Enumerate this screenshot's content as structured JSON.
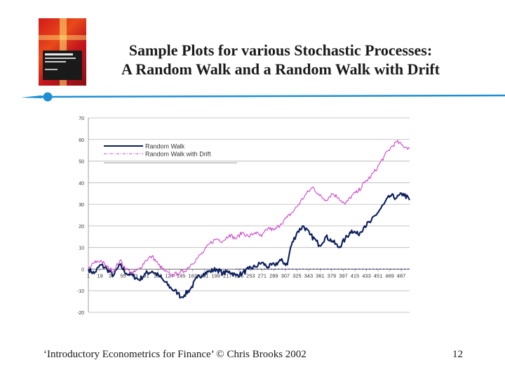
{
  "slide": {
    "title_line1": "Sample Plots for various Stochastic Processes:",
    "title_line2": "A Random Walk and a Random Walk with Drift",
    "footer": "‘Introductory Econometrics for Finance’ © Chris Brooks 2002",
    "page_number": "12"
  },
  "colors": {
    "random_walk": "#0d1f5c",
    "random_walk_drift": "#cc44cc",
    "rule": "#1e8fd5"
  },
  "chart_data": {
    "type": "line",
    "title": "",
    "xlabel": "",
    "ylabel": "",
    "ylim": [
      -20,
      70
    ],
    "y_ticks": [
      -20,
      -10,
      0,
      10,
      20,
      30,
      40,
      50,
      60,
      70
    ],
    "x_tick_labels": [
      "1",
      "19",
      "37",
      "55",
      "73",
      "91",
      "109",
      "127",
      "145",
      "163",
      "181",
      "199",
      "217",
      "235",
      "253",
      "271",
      "289",
      "307",
      "325",
      "343",
      "361",
      "379",
      "397",
      "415",
      "433",
      "451",
      "469",
      "487"
    ],
    "xlim": [
      1,
      500
    ],
    "grid": "horizontal",
    "legend_position": "top-left",
    "series": [
      {
        "name": "Random Walk",
        "style": "solid",
        "points": [
          [
            1,
            0
          ],
          [
            10,
            -2
          ],
          [
            20,
            2
          ],
          [
            30,
            0
          ],
          [
            40,
            -3
          ],
          [
            50,
            2
          ],
          [
            60,
            -2
          ],
          [
            70,
            -3
          ],
          [
            80,
            -5
          ],
          [
            90,
            -2
          ],
          [
            100,
            -1
          ],
          [
            110,
            -3
          ],
          [
            120,
            -6
          ],
          [
            130,
            -9
          ],
          [
            140,
            -11
          ],
          [
            145,
            -13
          ],
          [
            150,
            -12
          ],
          [
            160,
            -9
          ],
          [
            170,
            -4
          ],
          [
            180,
            -2
          ],
          [
            190,
            -1
          ],
          [
            200,
            0
          ],
          [
            210,
            -2
          ],
          [
            220,
            -1
          ],
          [
            230,
            -3
          ],
          [
            240,
            -2
          ],
          [
            250,
            0
          ],
          [
            260,
            1
          ],
          [
            270,
            3
          ],
          [
            280,
            1
          ],
          [
            290,
            2
          ],
          [
            300,
            4
          ],
          [
            310,
            2
          ],
          [
            315,
            10
          ],
          [
            325,
            17
          ],
          [
            335,
            20
          ],
          [
            345,
            16
          ],
          [
            355,
            13
          ],
          [
            360,
            11
          ],
          [
            370,
            15
          ],
          [
            380,
            13
          ],
          [
            390,
            10
          ],
          [
            400,
            14
          ],
          [
            410,
            18
          ],
          [
            420,
            16
          ],
          [
            430,
            20
          ],
          [
            440,
            22
          ],
          [
            450,
            26
          ],
          [
            460,
            30
          ],
          [
            470,
            34
          ],
          [
            480,
            33
          ],
          [
            490,
            35
          ],
          [
            500,
            32
          ]
        ]
      },
      {
        "name": "Random Walk with Drift",
        "style": "dash-dot",
        "points": [
          [
            1,
            0
          ],
          [
            10,
            3
          ],
          [
            20,
            4
          ],
          [
            30,
            1
          ],
          [
            40,
            -1
          ],
          [
            50,
            4
          ],
          [
            60,
            0
          ],
          [
            70,
            -2
          ],
          [
            80,
            0
          ],
          [
            90,
            4
          ],
          [
            100,
            6
          ],
          [
            110,
            2
          ],
          [
            120,
            -1
          ],
          [
            130,
            -3
          ],
          [
            140,
            -2
          ],
          [
            150,
            -1
          ],
          [
            160,
            2
          ],
          [
            170,
            5
          ],
          [
            180,
            8
          ],
          [
            190,
            12
          ],
          [
            200,
            14
          ],
          [
            210,
            13
          ],
          [
            220,
            16
          ],
          [
            230,
            14
          ],
          [
            240,
            17
          ],
          [
            250,
            15
          ],
          [
            260,
            17
          ],
          [
            270,
            15
          ],
          [
            280,
            19
          ],
          [
            290,
            18
          ],
          [
            300,
            21
          ],
          [
            310,
            24
          ],
          [
            320,
            27
          ],
          [
            330,
            31
          ],
          [
            340,
            35
          ],
          [
            350,
            38
          ],
          [
            360,
            34
          ],
          [
            370,
            32
          ],
          [
            380,
            35
          ],
          [
            390,
            33
          ],
          [
            400,
            30
          ],
          [
            410,
            34
          ],
          [
            420,
            36
          ],
          [
            430,
            40
          ],
          [
            440,
            43
          ],
          [
            450,
            47
          ],
          [
            460,
            52
          ],
          [
            470,
            56
          ],
          [
            480,
            59
          ],
          [
            490,
            57
          ],
          [
            500,
            56
          ]
        ]
      },
      {
        "name": "",
        "style": "dotted-flat",
        "points": [
          [
            230,
            0
          ],
          [
            500,
            0
          ]
        ]
      }
    ]
  }
}
